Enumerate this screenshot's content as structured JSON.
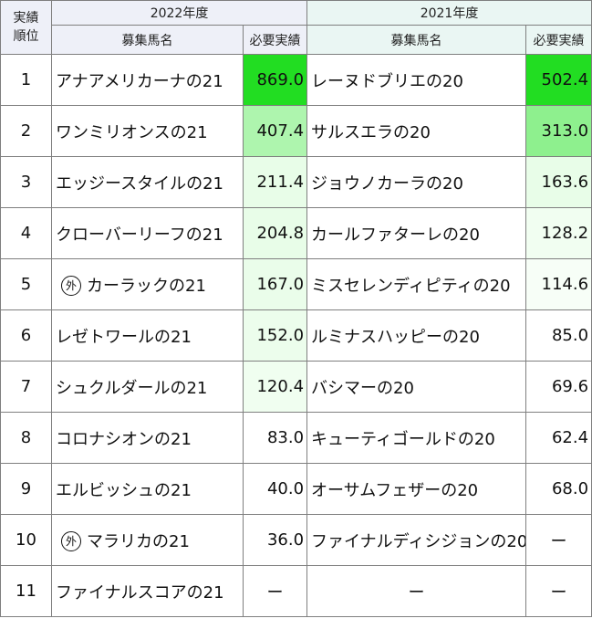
{
  "header": {
    "rank_label_line1": "実績",
    "rank_label_line2": "順位",
    "year_2022": "2022年度",
    "year_2021": "2021年度",
    "col_name": "募集馬名",
    "col_amount": "必要実績"
  },
  "rows": [
    {
      "rank": "1",
      "name_2022": "アナアメリカーナの21",
      "amount_2022": "869.0",
      "name_2021": "レーヌドブリエの20",
      "amount_2021": "502.4"
    },
    {
      "rank": "2",
      "name_2022": "ワンミリオンスの21",
      "amount_2022": "407.4",
      "name_2021": "サルスエラの20",
      "amount_2021": "313.0"
    },
    {
      "rank": "3",
      "name_2022": "エッジースタイルの21",
      "amount_2022": "211.4",
      "name_2021": "ジョウノカーラの20",
      "amount_2021": "163.6"
    },
    {
      "rank": "4",
      "name_2022": "クローバーリーフの21",
      "amount_2022": "204.8",
      "name_2021": "カールファターレの20",
      "amount_2021": "128.2"
    },
    {
      "rank": "5",
      "badge_2022": "外",
      "name_2022": "カーラックの21",
      "amount_2022": "167.0",
      "name_2021": "ミスセレンディピティの20",
      "amount_2021": "114.6"
    },
    {
      "rank": "6",
      "name_2022": "レゼトワールの21",
      "amount_2022": "152.0",
      "name_2021": "ルミナスハッピーの20",
      "amount_2021": "85.0"
    },
    {
      "rank": "7",
      "name_2022": "シュクルダールの21",
      "amount_2022": "120.4",
      "name_2021": "バシマーの20",
      "amount_2021": "69.6"
    },
    {
      "rank": "8",
      "name_2022": "コロナシオンの21",
      "amount_2022": "83.0",
      "name_2021": "キューティゴールドの20",
      "amount_2021": "62.4"
    },
    {
      "rank": "9",
      "name_2022": "エルビッシュの21",
      "amount_2022": "40.0",
      "name_2021": "オーサムフェザーの20",
      "amount_2021": "68.0"
    },
    {
      "rank": "10",
      "badge_2022": "外",
      "name_2022": "マラリカの21",
      "amount_2022": "36.0",
      "name_2021": "ファイナルディシジョンの20",
      "amount_2021": "ー"
    },
    {
      "rank": "11",
      "name_2022": "ファイナルスコアの21",
      "amount_2022": "ー",
      "name_2021": "ー",
      "amount_2021": "ー"
    }
  ],
  "colors": {
    "amount_2022": [
      "#22dd22",
      "#aef5ae",
      "#e8fde8",
      "#e8fde8",
      "#eafdea",
      "#ecfdec",
      "#f0fef0",
      "#ffffff",
      "#ffffff",
      "#ffffff",
      "#ffffff"
    ],
    "amount_2021": [
      "#22dd22",
      "#8ef08e",
      "#e8fde8",
      "#f1fef1",
      "#f7fef7",
      "#ffffff",
      "#ffffff",
      "#ffffff",
      "#ffffff",
      "#ffffff",
      "#ffffff"
    ]
  }
}
